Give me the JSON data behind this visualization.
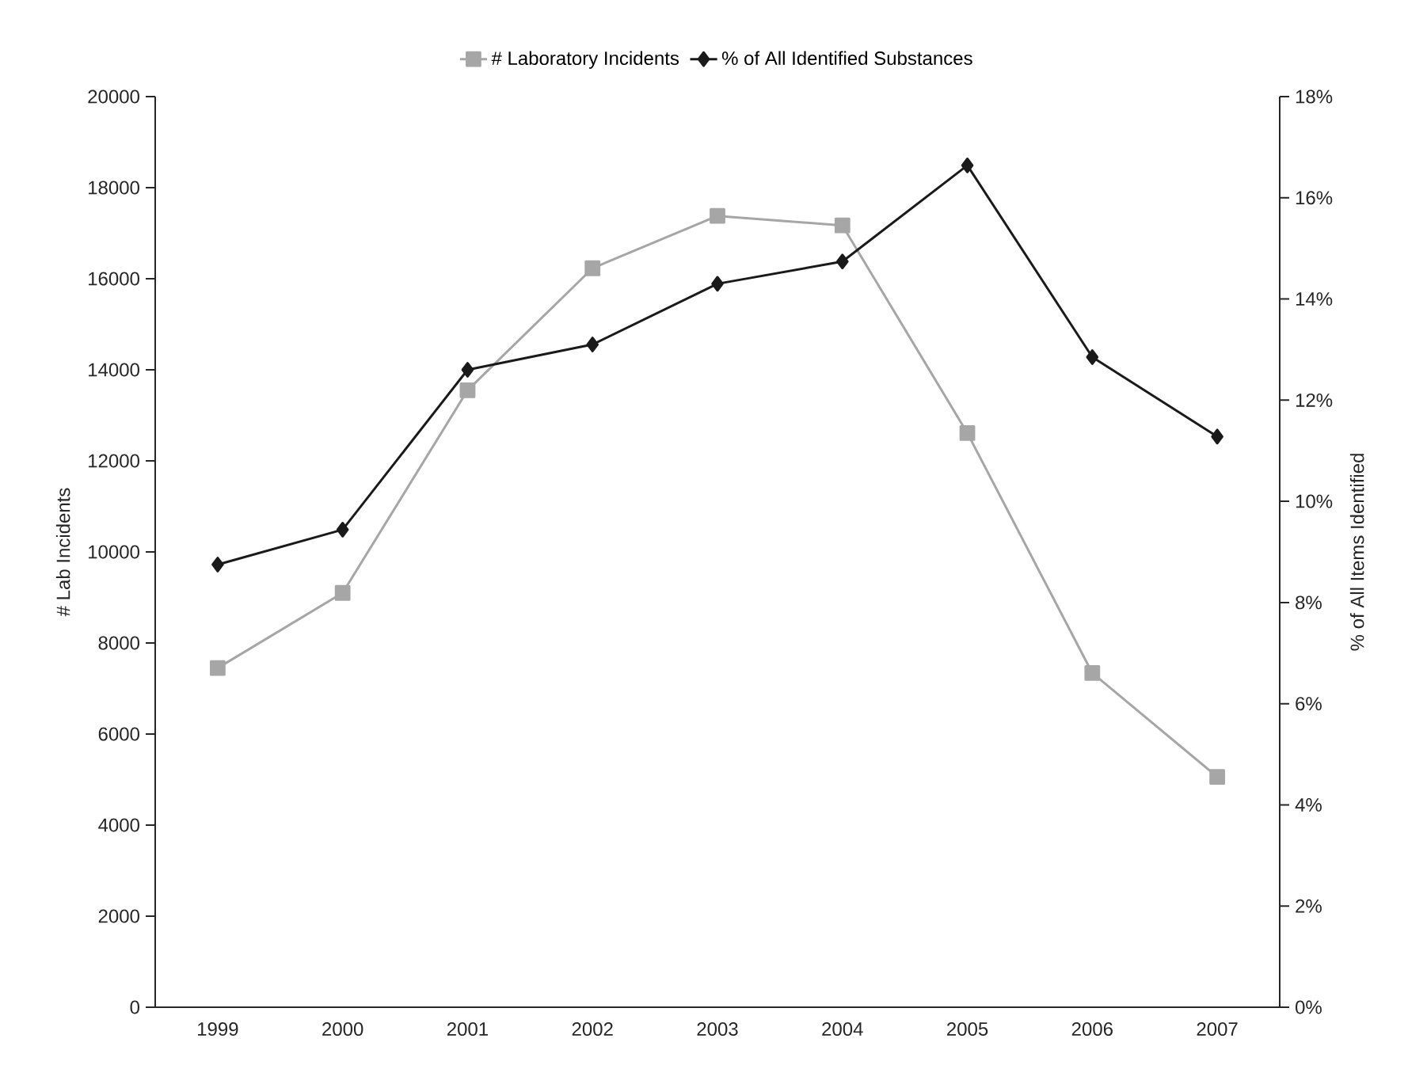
{
  "chart_data": {
    "type": "line",
    "categories": [
      "1999",
      "2000",
      "2001",
      "2002",
      "2003",
      "2004",
      "2005",
      "2006",
      "2007"
    ],
    "series": [
      {
        "name": "# Laboratory Incidents",
        "color": "#a6a6a6",
        "marker": "square",
        "values": [
          7450,
          9100,
          13550,
          16230,
          17380,
          17170,
          12610,
          7340,
          5060
        ]
      },
      {
        "name": "% of All Identified Substances",
        "color": "#1a1a1a",
        "marker": "diamond",
        "axis": "y2",
        "values": [
          8.75,
          9.44,
          12.6,
          13.1,
          14.3,
          14.74,
          16.64,
          12.85,
          11.28
        ]
      }
    ],
    "ylabel": "# Lab Incidents",
    "y2label": "% of All Items Identified",
    "ylim": [
      0,
      20000
    ],
    "yticks": [
      0,
      2000,
      4000,
      6000,
      8000,
      10000,
      12000,
      14000,
      16000,
      18000,
      20000
    ],
    "y2lim": [
      0,
      18
    ],
    "y2ticks": [
      {
        "value": 0,
        "label": "0%"
      },
      {
        "value": 2,
        "label": "2%"
      },
      {
        "value": 4,
        "label": "4%"
      },
      {
        "value": 6,
        "label": "6%"
      },
      {
        "value": 8,
        "label": "8%"
      },
      {
        "value": 10,
        "label": "10%"
      },
      {
        "value": 12,
        "label": "12%"
      },
      {
        "value": 14,
        "label": "14%"
      },
      {
        "value": 16,
        "label": "16%"
      },
      {
        "value": 18,
        "label": "18%"
      }
    ],
    "legend": "top"
  }
}
